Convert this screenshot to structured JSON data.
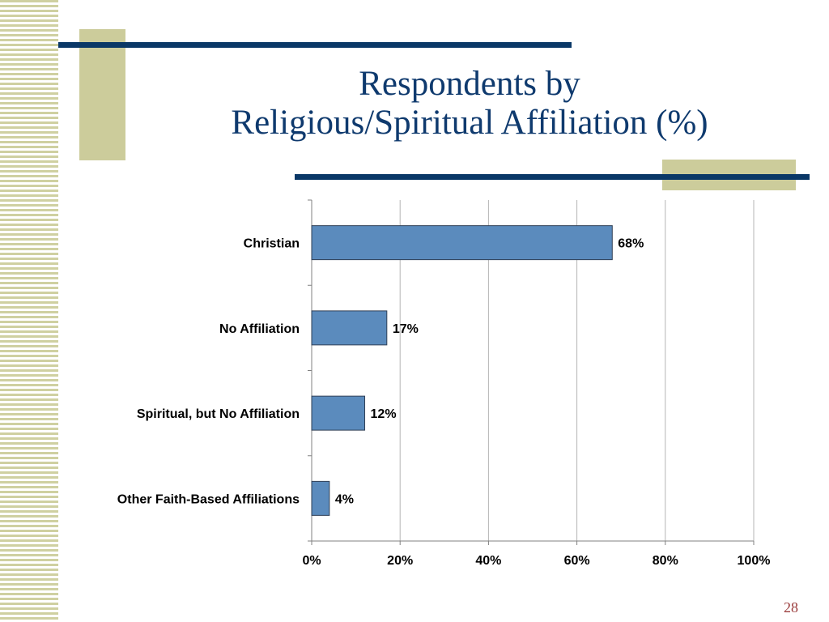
{
  "slide": {
    "title_line1": "Respondents by",
    "title_line2": "Religious/Spiritual Affiliation (%)",
    "page_number": "28",
    "colors": {
      "accent_bar": "#0a3867",
      "deco_rect": "#cccc9b",
      "title": "#0f3a6e",
      "page_number": "#9a3b3b"
    }
  },
  "chart_data": {
    "type": "bar",
    "orientation": "horizontal",
    "title": "Respondents by Religious/Spiritual Affiliation (%)",
    "categories": [
      "Christian",
      "No Affiliation",
      "Spiritual, but No Affiliation",
      "Other Faith-Based Affiliations"
    ],
    "values": [
      68,
      17,
      12,
      4
    ],
    "value_labels": [
      "68%",
      "17%",
      "12%",
      "4%"
    ],
    "xlim": [
      0,
      100
    ],
    "xticks": [
      0,
      20,
      40,
      60,
      80,
      100
    ],
    "xtick_labels": [
      "0%",
      "20%",
      "40%",
      "60%",
      "80%",
      "100%"
    ],
    "grid": "vertical",
    "legend": "none",
    "bar_color": "#5b8bbd",
    "bar_edge_color": "#2f3f55"
  }
}
